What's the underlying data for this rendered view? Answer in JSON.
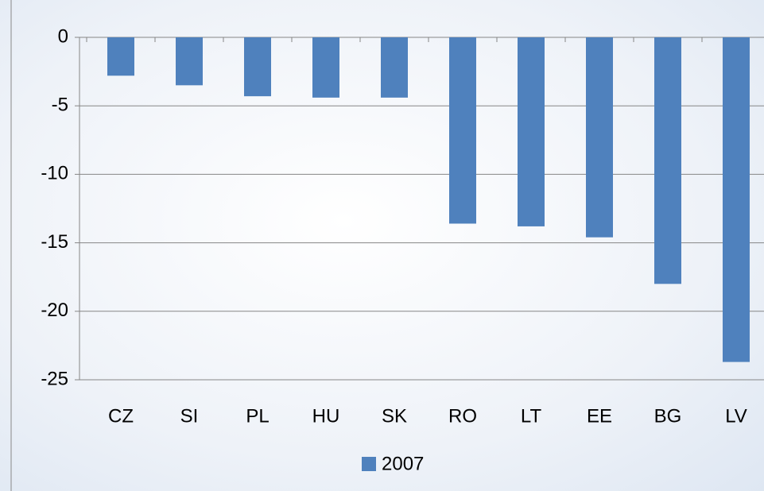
{
  "chart_data": {
    "type": "bar",
    "categories": [
      "CZ",
      "SI",
      "PL",
      "HU",
      "SK",
      "RO",
      "LT",
      "EE",
      "BG",
      "LV"
    ],
    "series": [
      {
        "name": "2007",
        "color": "#4f81bd",
        "values": [
          -2.8,
          -3.5,
          -4.3,
          -4.4,
          -4.4,
          -13.6,
          -13.8,
          -14.6,
          -18.0,
          -23.7
        ]
      }
    ],
    "ylim": [
      -25,
      0
    ],
    "yticks": [
      0,
      -5,
      -10,
      -15,
      -20,
      -25
    ],
    "grid": true,
    "legend": "bottom"
  }
}
